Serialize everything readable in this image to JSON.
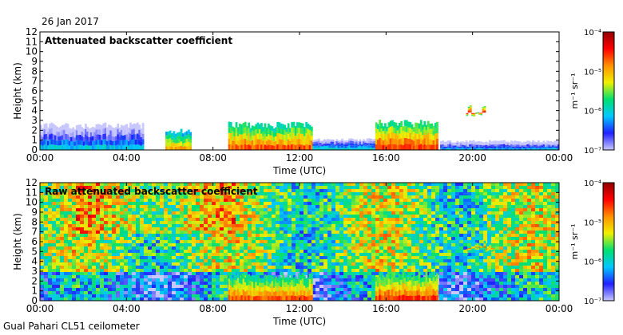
{
  "header": {
    "date": "26 Jan 2017"
  },
  "footer": {
    "site_label": "Gual Pahari CL51 ceilometer"
  },
  "colors": {
    "colormap": [
      "#c8c8ff",
      "#2020ff",
      "#00c8ff",
      "#00e070",
      "#f0f000",
      "#ff9000",
      "#ff0000",
      "#900000"
    ]
  },
  "chart_data": [
    {
      "type": "heatmap",
      "title": "Attenuated backscatter coefficient",
      "xlabel": "Time (UTC)",
      "ylabel": "Height (km)",
      "xlim_hours": [
        0,
        24
      ],
      "ylim": [
        0,
        12
      ],
      "x_ticks": [
        "00:00",
        "04:00",
        "08:00",
        "12:00",
        "16:00",
        "20:00",
        "00:00"
      ],
      "y_ticks": [
        "0",
        "1",
        "2",
        "3",
        "4",
        "5",
        "6",
        "7",
        "8",
        "9",
        "10",
        "11",
        "12"
      ],
      "colorbar": {
        "label": "m⁻¹ sr⁻¹",
        "ticks": [
          "10⁻⁷",
          "10⁻⁶",
          "10⁻⁵",
          "10⁻⁴"
        ],
        "log10_range": [
          -7,
          -4
        ]
      },
      "features": [
        {
          "name": "boundary layer",
          "t_start": 0.0,
          "t_end": 4.8,
          "top_km": 2.8,
          "peak_log10": -5.9
        },
        {
          "name": "aerosol layer",
          "t_start": 5.8,
          "t_end": 7.0,
          "top_km": 2.2,
          "peak_log10": -4.8
        },
        {
          "name": "aerosol layer",
          "t_start": 8.7,
          "t_end": 12.6,
          "top_km": 2.9,
          "peak_log10": -4.5
        },
        {
          "name": "low layer",
          "t_start": 12.6,
          "t_end": 15.5,
          "top_km": 1.2,
          "peak_log10": -5.8
        },
        {
          "name": "aerosol layer",
          "t_start": 15.5,
          "t_end": 18.4,
          "top_km": 3.1,
          "peak_log10": -4.4
        },
        {
          "name": "elevated cloud",
          "t_start": 19.7,
          "t_end": 20.6,
          "top_km": 4.6,
          "peak_log10": -4.3
        },
        {
          "name": "low layer",
          "t_start": 18.5,
          "t_end": 24.0,
          "top_km": 1.0,
          "peak_log10": -6.0
        }
      ]
    },
    {
      "type": "heatmap",
      "title": "Raw attenuated backscatter coefficient",
      "xlabel": "Time (UTC)",
      "ylabel": "Height (km)",
      "xlim_hours": [
        0,
        24
      ],
      "ylim": [
        0,
        12
      ],
      "x_ticks": [
        "00:00",
        "04:00",
        "08:00",
        "12:00",
        "16:00",
        "20:00",
        "00:00"
      ],
      "y_ticks": [
        "0",
        "1",
        "2",
        "3",
        "4",
        "5",
        "6",
        "7",
        "8",
        "9",
        "10",
        "11",
        "12"
      ],
      "colorbar": {
        "label": "m⁻¹ sr⁻¹",
        "ticks": [
          "10⁻⁷",
          "10⁻⁶",
          "10⁻⁵",
          "10⁻⁴"
        ],
        "log10_range": [
          -7,
          -4
        ]
      },
      "features": [
        {
          "name": "noise-dominated column",
          "t_start": 0.0,
          "t_end": 24.0,
          "top_km": 12,
          "peak_log10": -5.5
        },
        {
          "name": "aerosol layer",
          "t_start": 8.7,
          "t_end": 12.6,
          "top_km": 2.9,
          "peak_log10": -4.5
        },
        {
          "name": "aerosol layer",
          "t_start": 15.5,
          "t_end": 18.4,
          "top_km": 3.1,
          "peak_log10": -4.4
        },
        {
          "name": "elevated layer",
          "t_start": 19.7,
          "t_end": 21.0,
          "top_km": 6.2,
          "peak_log10": -4.6
        }
      ]
    }
  ]
}
